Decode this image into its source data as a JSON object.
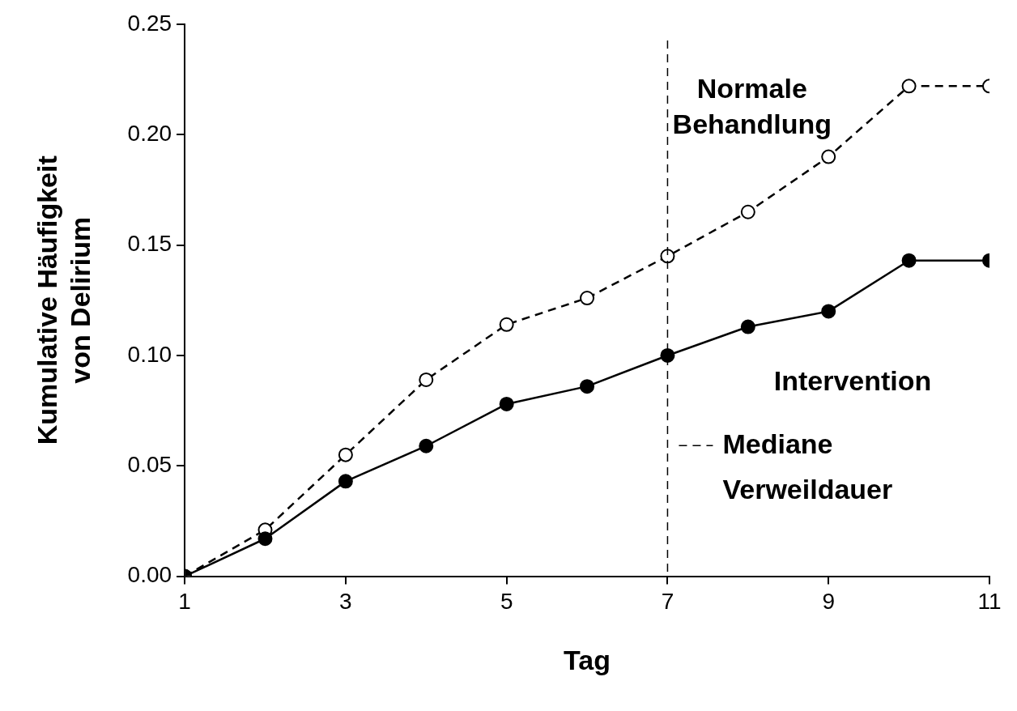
{
  "chart_data": {
    "type": "line",
    "xlabel": "Tag",
    "ylabel": "Kumulative Häufigkeit\nvon Delirium",
    "x": [
      1,
      2,
      3,
      4,
      5,
      6,
      7,
      8,
      9,
      10,
      11
    ],
    "series": [
      {
        "name": "Normale Behandlung",
        "color": "#000000",
        "line_style": "dashed",
        "values": [
          0,
          0.021,
          0.055,
          0.089,
          0.114,
          0.126,
          0.145,
          0.165,
          0.19,
          0.222,
          0.222
        ]
      },
      {
        "name": "Intervention",
        "color": "#000000",
        "line_style": "solid",
        "values": [
          0,
          0.017,
          0.043,
          0.059,
          0.078,
          0.086,
          0.1,
          0.113,
          0.12,
          0.143,
          0.143
        ]
      }
    ],
    "xlim": [
      1,
      11
    ],
    "xticks": [
      1,
      3,
      5,
      7,
      9,
      11
    ],
    "ylim": [
      0,
      0.25
    ],
    "yticks": [
      {
        "value": 0,
        "label": "0.00"
      },
      {
        "value": 0.05,
        "label": "0.05"
      },
      {
        "value": 0.1,
        "label": "0.10"
      },
      {
        "value": 0.15,
        "label": "0.15"
      },
      {
        "value": 0.2,
        "label": "0.20"
      },
      {
        "value": 0.25,
        "label": "0.25"
      }
    ],
    "ref_lines": [
      {
        "axis": "x",
        "value": 7,
        "label": "Mediane Verweildauer",
        "color": "#000000",
        "line_style": "dashed"
      }
    ],
    "grid": false,
    "legend": false,
    "marker": "circle"
  }
}
